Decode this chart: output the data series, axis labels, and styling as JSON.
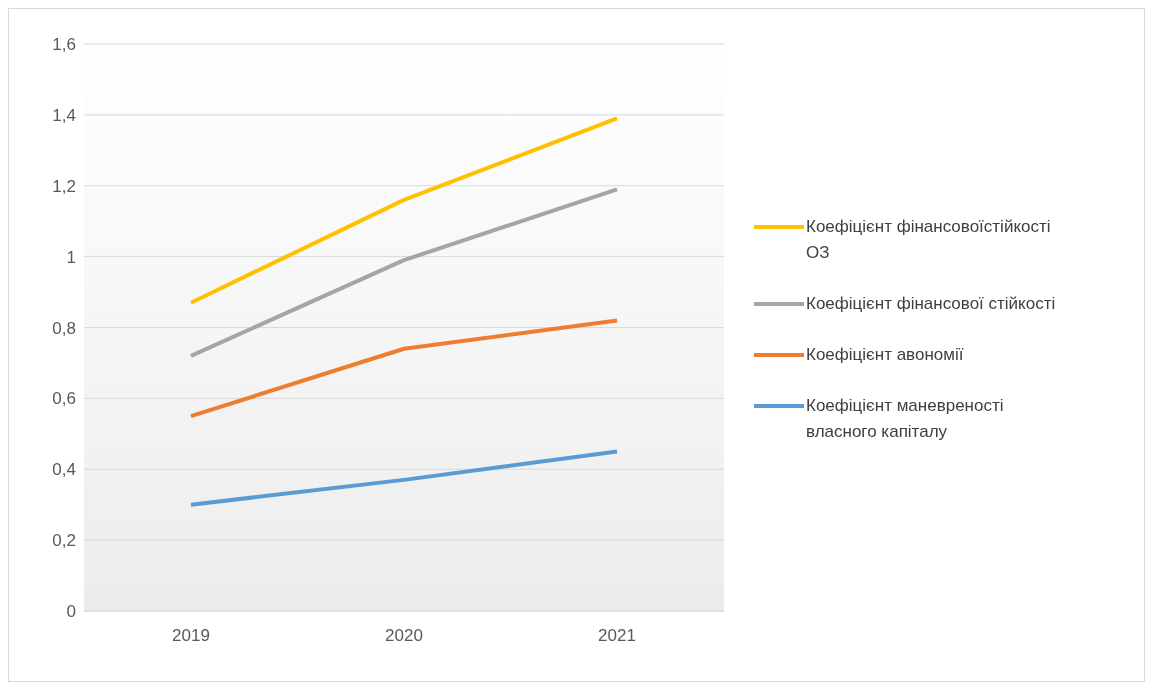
{
  "chart_data": {
    "type": "line",
    "categories": [
      "2019",
      "2020",
      "2021"
    ],
    "series": [
      {
        "name": "Коефіцієнт фінансовоїстійкості ОЗ",
        "color": "#ffc000",
        "values": [
          0.87,
          1.16,
          1.39
        ]
      },
      {
        "name": "Коефіцієнт фінансової стійкості",
        "color": "#a5a5a5",
        "values": [
          0.72,
          0.99,
          1.19
        ]
      },
      {
        "name": "Коефіцієнт авономії",
        "color": "#ed7d31",
        "values": [
          0.55,
          0.74,
          0.82
        ]
      },
      {
        "name": "Коефіцієнт маневреності власного капіталу",
        "color": "#5b9bd5",
        "values": [
          0.3,
          0.37,
          0.45
        ]
      }
    ],
    "ylim": [
      0,
      1.6
    ],
    "yticks": [
      0,
      {
        "value": 0.2,
        "label": "0,2"
      },
      {
        "value": 0.4,
        "label": "0,4"
      },
      {
        "value": 0.6,
        "label": "0,6"
      },
      {
        "value": 0.8,
        "label": "0,8"
      },
      1,
      {
        "value": 1.2,
        "label": "1,2"
      },
      {
        "value": 1.4,
        "label": "1,4"
      },
      {
        "value": 1.6,
        "label": "1,6"
      }
    ],
    "grid": "y",
    "legend": "right",
    "marker": "none",
    "line_style": "solid"
  }
}
